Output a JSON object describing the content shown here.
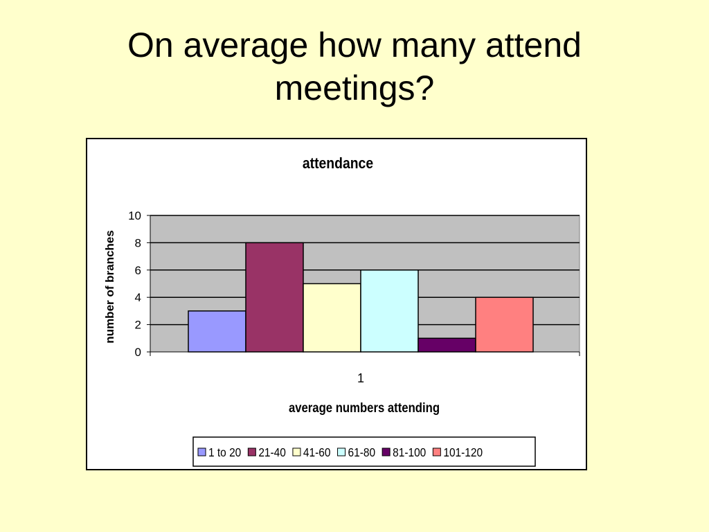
{
  "slide": {
    "title_line1": "On average how many attend",
    "title_line2": "meetings?"
  },
  "chart_data": {
    "type": "bar",
    "title": "attendance",
    "xlabel": "average numbers attending",
    "ylabel": "number of branches",
    "categories": [
      "1"
    ],
    "ylim": [
      0,
      10
    ],
    "yticks": [
      "0",
      "2",
      "4",
      "6",
      "8",
      "10"
    ],
    "grid": true,
    "legend_position": "bottom",
    "plot_background": "#c0c0c0",
    "series": [
      {
        "name": "1 to 20",
        "values": [
          3
        ],
        "color": "#9999ff"
      },
      {
        "name": "21-40",
        "values": [
          8
        ],
        "color": "#993366"
      },
      {
        "name": "41-60",
        "values": [
          5
        ],
        "color": "#ffffcc"
      },
      {
        "name": "61-80",
        "values": [
          6
        ],
        "color": "#ccffff"
      },
      {
        "name": "81-100",
        "values": [
          1
        ],
        "color": "#660066"
      },
      {
        "name": "101-120",
        "values": [
          4
        ],
        "color": "#ff8080"
      }
    ]
  }
}
